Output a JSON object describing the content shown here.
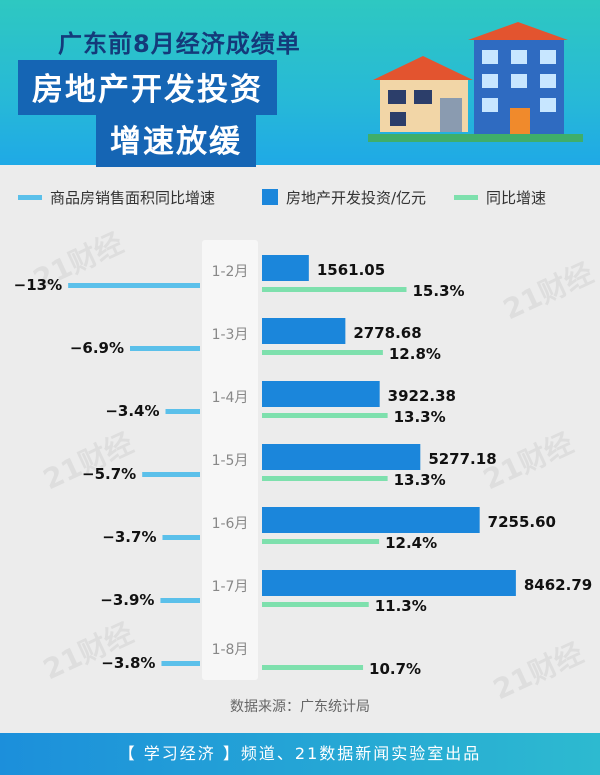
{
  "header": {
    "subtitle": "广东前8月经济成绩单",
    "title_line1": "房地产开发投资",
    "title_line2": "增速放缓"
  },
  "legend": {
    "sales_area": "商品房销售面积同比增速",
    "investment": "房地产开发投资/亿元",
    "growth": "同比增速"
  },
  "colors": {
    "sales_line": "#5bc0ea",
    "investment_bar": "#1b86db",
    "growth_line": "#7ee0ad",
    "header_bg": "#27b9d7",
    "title_bg": "#1565b4"
  },
  "chart_data": {
    "type": "bar",
    "categories": [
      "1-2月",
      "1-3月",
      "1-4月",
      "1-5月",
      "1-6月",
      "1-7月",
      "1-8月"
    ],
    "series": [
      {
        "name": "房地产开发投资/亿元",
        "values": [
          1561.05,
          2778.68,
          3922.38,
          5277.18,
          7255.6,
          8462.79,
          null
        ],
        "labels": [
          "1561.05",
          "2778.68",
          "3922.38",
          "5277.18",
          "7255.60",
          "8462.79",
          ""
        ]
      },
      {
        "name": "同比增速",
        "values": [
          15.3,
          12.8,
          13.3,
          13.3,
          12.4,
          11.3,
          10.7
        ],
        "labels": [
          "15.3%",
          "12.8%",
          "13.3%",
          "13.3%",
          "12.4%",
          "11.3%",
          "10.7%"
        ]
      },
      {
        "name": "商品房销售面积同比增速",
        "values": [
          -13,
          -6.9,
          -3.4,
          -5.7,
          -3.7,
          -3.9,
          -3.8
        ],
        "labels": [
          "−13%",
          "−6.9%",
          "−3.4%",
          "−5.7%",
          "−3.7%",
          "−3.9%",
          "−3.8%"
        ]
      }
    ]
  },
  "watermark": "21财经",
  "source": "数据来源：广东统计局",
  "footer": "【 学习经济 】频道、21数据新闻实验室出品"
}
